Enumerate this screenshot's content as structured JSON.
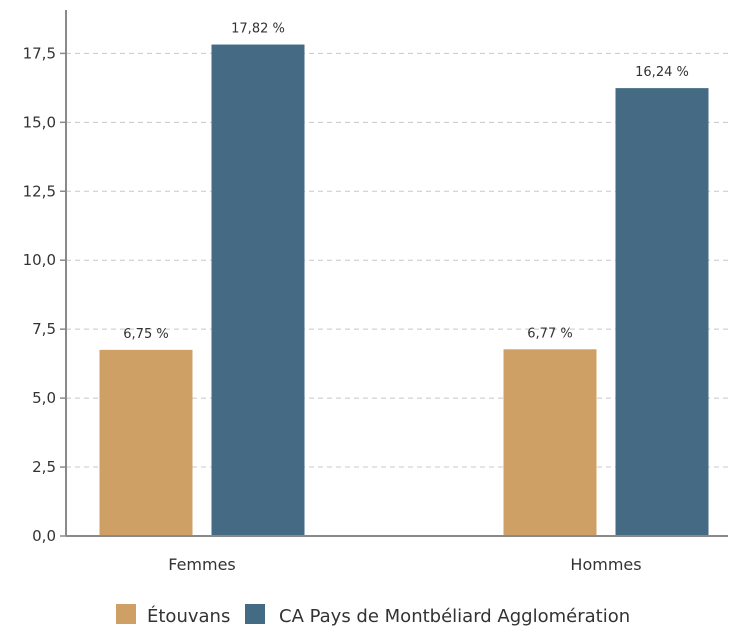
{
  "colors": {
    "etouvans": "#cfa066",
    "ca_pays": "#446a84",
    "grid": "#c8c8c8",
    "axis": "#8a8a8a"
  },
  "chart_data": {
    "type": "bar",
    "categories": [
      "Femmes",
      "Hommes"
    ],
    "series": [
      {
        "name": "Étouvans",
        "values": [
          6.75,
          6.77
        ],
        "labels": [
          "6,75 %",
          "6,77 %"
        ],
        "color": "#cfa066"
      },
      {
        "name": "CA Pays de Montbéliard Agglomération",
        "values": [
          17.82,
          16.24
        ],
        "labels": [
          "17,82 %",
          "16,24 %"
        ],
        "color": "#446a84"
      }
    ],
    "title": "",
    "xlabel": "",
    "ylabel": "",
    "ylim": [
      0,
      19
    ],
    "yticks": [
      0,
      2.5,
      5,
      7.5,
      10,
      12.5,
      15,
      17.5
    ],
    "ytick_labels": [
      "0,0",
      "2,5",
      "5,0",
      "7,5",
      "10,0",
      "12,5",
      "15,0",
      "17,5"
    ],
    "grid": true,
    "legend_position": "bottom"
  }
}
